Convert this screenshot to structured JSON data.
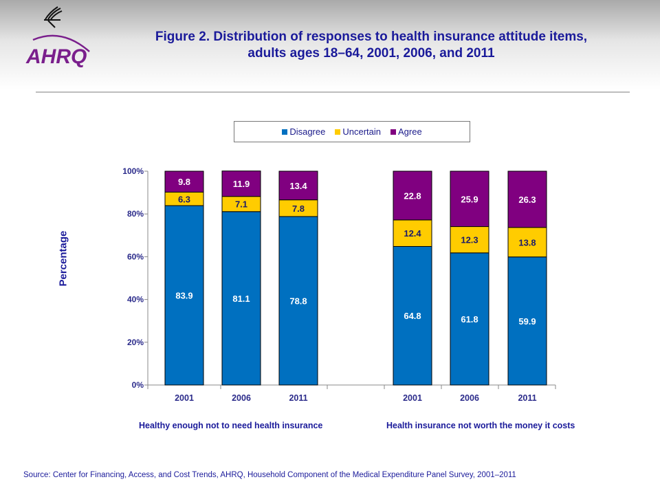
{
  "header": {
    "title": "Figure 2. Distribution of responses to health insurance attitude items, adults ages 18–64, 2001, 2006, and 2011",
    "logo_text": "AHRQ"
  },
  "source": "Source: Center for Financing, Access, and Cost Trends, AHRQ, Household Component of the Medical Expenditure Panel Survey,  2001–2011",
  "chart_data": {
    "type": "bar",
    "stacked": true,
    "ylabel": "Percentage",
    "ylim": [
      0,
      100
    ],
    "yticks": [
      "0%",
      "20%",
      "40%",
      "60%",
      "80%",
      "100%"
    ],
    "legend_position": "top",
    "colors": {
      "Disagree": "#0070c0",
      "Uncertain": "#ffcc00",
      "Agree": "#800080"
    },
    "groups": [
      {
        "label": "Healthy enough not to need health insurance",
        "categories": [
          "2001",
          "2006",
          "2011"
        ],
        "series": [
          {
            "name": "Disagree",
            "values": [
              83.9,
              81.1,
              78.8
            ]
          },
          {
            "name": "Uncertain",
            "values": [
              6.3,
              7.1,
              7.8
            ]
          },
          {
            "name": "Agree",
            "values": [
              9.8,
              11.9,
              13.4
            ]
          }
        ]
      },
      {
        "label": "Health insurance not worth the money it costs",
        "categories": [
          "2001",
          "2006",
          "2011"
        ],
        "series": [
          {
            "name": "Disagree",
            "values": [
              64.8,
              61.8,
              59.9
            ]
          },
          {
            "name": "Uncertain",
            "values": [
              12.4,
              12.3,
              13.8
            ]
          },
          {
            "name": "Agree",
            "values": [
              22.8,
              25.9,
              26.3
            ]
          }
        ]
      }
    ]
  }
}
